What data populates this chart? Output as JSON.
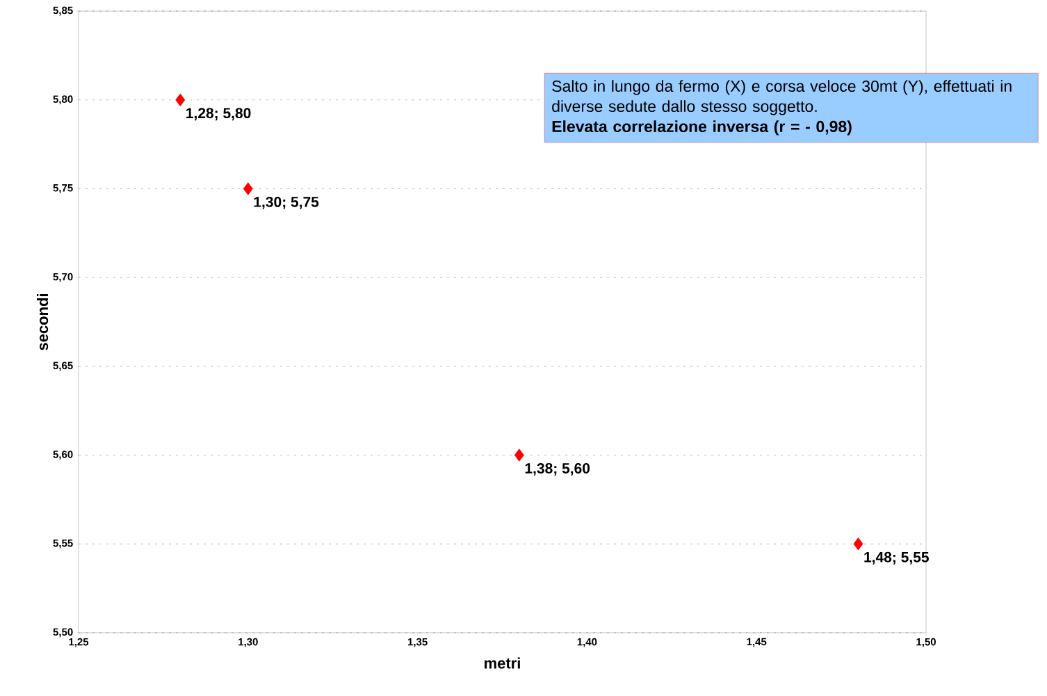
{
  "chart_data": {
    "type": "scatter",
    "xlabel": "metri",
    "ylabel": "secondi",
    "x": [
      1.28,
      1.3,
      1.38,
      1.48
    ],
    "values": [
      5.8,
      5.75,
      5.6,
      5.55
    ],
    "value_labels": [
      "1,28; 5,80",
      "1,30; 5,75",
      "1,38; 5,60",
      "1,48; 5,55"
    ],
    "color": "#ff0000",
    "marker": "diamond",
    "grid": "y",
    "xlim": [
      1.25,
      1.5
    ],
    "xticks": [
      {
        "value": 1.25,
        "label": "1,25"
      },
      {
        "value": 1.3,
        "label": "1,30"
      },
      {
        "value": 1.35,
        "label": "1,35"
      },
      {
        "value": 1.4,
        "label": "1,40"
      },
      {
        "value": 1.45,
        "label": "1,45"
      },
      {
        "value": 1.5,
        "label": "1,50"
      }
    ],
    "ylim": [
      5.5,
      5.85
    ],
    "yticks": [
      {
        "value": 5.5,
        "label": "5,50"
      },
      {
        "value": 5.55,
        "label": "5,55"
      },
      {
        "value": 5.6,
        "label": "5,60"
      },
      {
        "value": 5.65,
        "label": "5,65"
      },
      {
        "value": 5.7,
        "label": "5,70"
      },
      {
        "value": 5.75,
        "label": "5,75"
      },
      {
        "value": 5.8,
        "label": "5,80"
      },
      {
        "value": 5.85,
        "label": "5,85"
      }
    ],
    "annotations": [
      "Salto in lungo da fermo (X) e corsa veloce 30mt (Y), effettuati in diverse sedute dallo stesso soggetto.",
      "Elevata correlazione inversa (r = - 0,98)"
    ]
  }
}
